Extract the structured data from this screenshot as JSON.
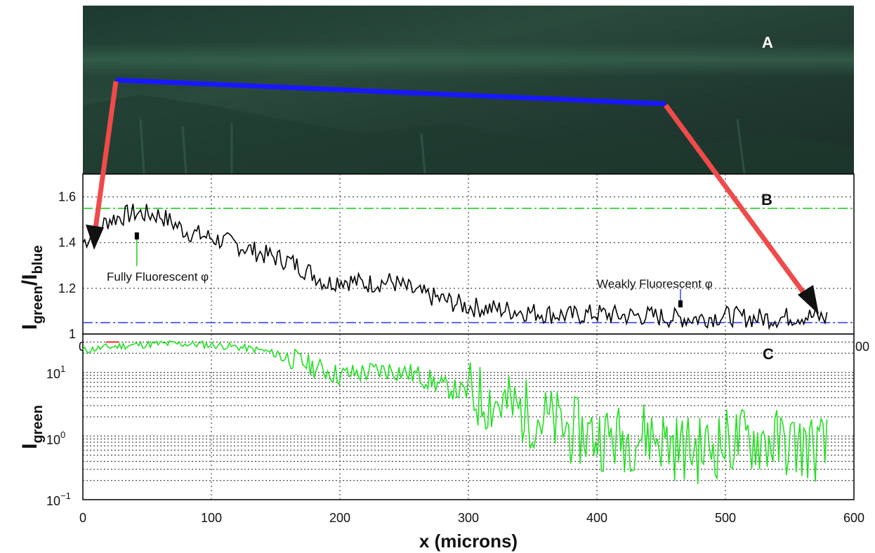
{
  "chart_data": [
    {
      "panel": "A",
      "type": "image",
      "label": "A",
      "colors": {
        "background": "#22392f",
        "trace": "#1818ff",
        "arrow": "#f04a4a"
      }
    },
    {
      "panel": "B",
      "type": "line",
      "label": "B",
      "ylabel_main": "I",
      "ylabel_sub1": "green",
      "ylabel_slash": "/I",
      "ylabel_sub2": "blue",
      "xlim": [
        0,
        600
      ],
      "ylim": [
        1,
        1.7
      ],
      "yticks": [
        "1",
        "1.2",
        "1.4",
        "1.6"
      ],
      "xtick_first": "0",
      "xtick_last": "00",
      "grid": true,
      "reference_lines": [
        {
          "y": 1.55,
          "color": "#22cc22",
          "style": "dash-dot"
        },
        {
          "y": 1.05,
          "color": "#3344ff",
          "style": "dash-dot"
        }
      ],
      "annotations": [
        {
          "text": "Fully Fluorescent φ",
          "x": 42,
          "y": 1.42
        },
        {
          "text": "Weakly Fluorescent φ",
          "x": 465,
          "y": 1.12
        }
      ],
      "series": [
        {
          "color": "#000000",
          "x": [
            0,
            20,
            40,
            60,
            80,
            100,
            120,
            140,
            160,
            180,
            190,
            200,
            220,
            240,
            260,
            280,
            300,
            320,
            340,
            360,
            380,
            400,
            420,
            440,
            460,
            480,
            500,
            520,
            540,
            560,
            580
          ],
          "y": [
            1.4,
            1.5,
            1.53,
            1.52,
            1.45,
            1.42,
            1.39,
            1.35,
            1.32,
            1.26,
            1.22,
            1.24,
            1.22,
            1.23,
            1.18,
            1.15,
            1.12,
            1.11,
            1.1,
            1.09,
            1.08,
            1.09,
            1.08,
            1.08,
            1.07,
            1.07,
            1.08,
            1.07,
            1.07,
            1.08,
            1.07
          ]
        }
      ]
    },
    {
      "panel": "C",
      "type": "line",
      "label": "C",
      "ylabel_main": "I",
      "ylabel_sub": "green",
      "yscale": "log",
      "xlabel": "x (microns)",
      "xlim": [
        0,
        600
      ],
      "ylim": [
        0.1,
        40
      ],
      "ytick_labels": [
        {
          "base": "10",
          "exp": "1",
          "value": 10
        },
        {
          "base": "10",
          "exp": "0",
          "value": 1
        },
        {
          "base": "10",
          "exp": "−1",
          "value": 0.1
        }
      ],
      "xticks": [
        "0",
        "100",
        "200",
        "300",
        "400",
        "500",
        "600"
      ],
      "grid": true,
      "series": [
        {
          "color": "#22e022",
          "x": [
            0,
            20,
            40,
            60,
            80,
            100,
            120,
            140,
            160,
            180,
            200,
            220,
            240,
            260,
            280,
            300,
            320,
            340,
            360,
            380,
            400,
            420,
            440,
            460,
            480,
            500,
            520,
            540,
            560,
            580
          ],
          "y": [
            22,
            25,
            27,
            28,
            28,
            27,
            25,
            22,
            17,
            12,
            9,
            10,
            11,
            9,
            6,
            4.5,
            3.5,
            2.5,
            1.8,
            1.2,
            1.0,
            0.9,
            1.1,
            0.7,
            0.6,
            0.8,
            0.9,
            0.8,
            0.7,
            0.6
          ]
        }
      ],
      "marker": {
        "x_start": 18,
        "x_end": 28,
        "y": 30,
        "color": "#ff2222"
      }
    }
  ]
}
